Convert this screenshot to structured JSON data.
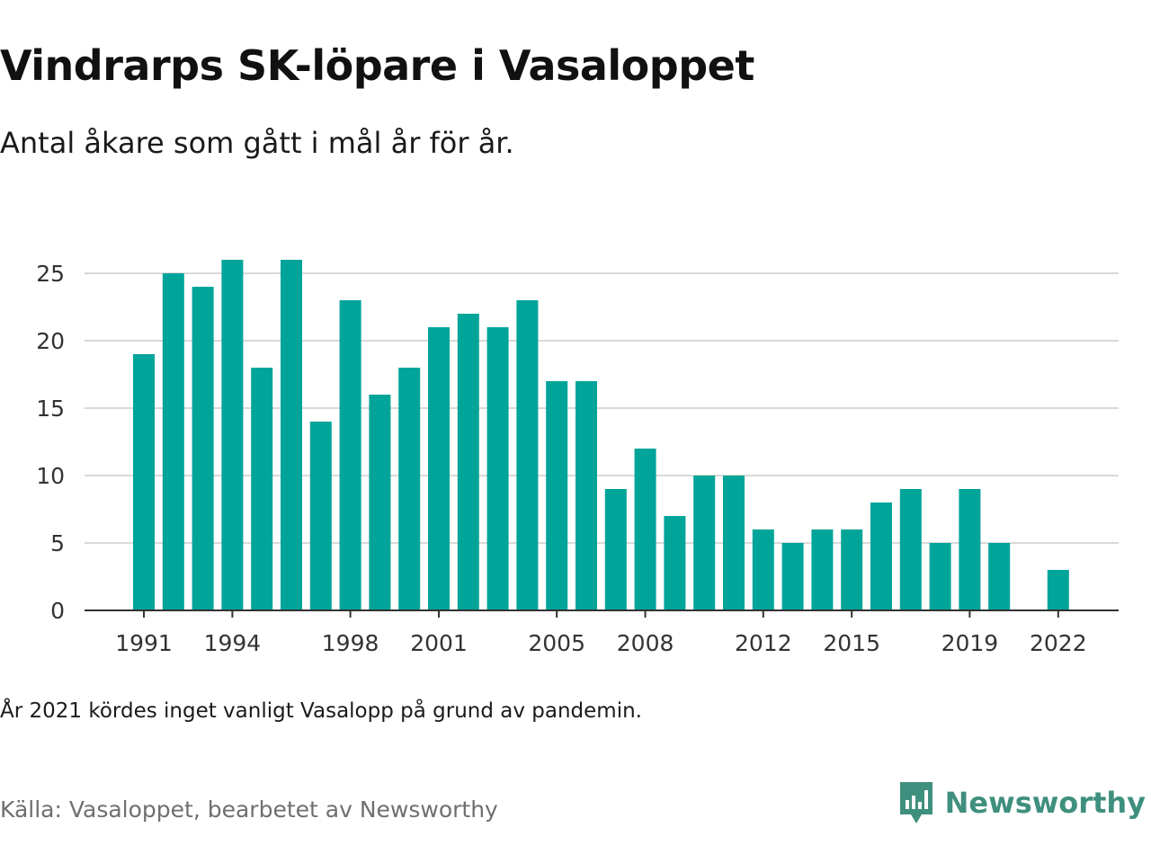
{
  "title": "Vindrarps SK-löpare i Vasaloppet",
  "subtitle": "Antal åkare som gått i mål år för år.",
  "note": "År 2021 kördes inget vanligt Vasalopp på grund av pandemin.",
  "source": "Källa: Vasaloppet, bearbetet av Newsworthy",
  "brand": {
    "name": "Newsworthy",
    "icon": "newsworthy-logo-icon",
    "color": "#3f8f7e"
  },
  "colors": {
    "bar": "#00a499",
    "grid": "#d9d9d9",
    "axis": "#333333",
    "tick_text": "#333333"
  },
  "chart_data": {
    "type": "bar",
    "x": [
      1991,
      1992,
      1993,
      1994,
      1995,
      1996,
      1997,
      1998,
      1999,
      2000,
      2001,
      2002,
      2003,
      2004,
      2005,
      2006,
      2007,
      2008,
      2009,
      2010,
      2011,
      2012,
      2013,
      2014,
      2015,
      2016,
      2017,
      2018,
      2019,
      2020,
      2021,
      2022
    ],
    "values": [
      19,
      25,
      24,
      26,
      18,
      26,
      14,
      23,
      16,
      18,
      21,
      22,
      21,
      23,
      17,
      17,
      9,
      12,
      7,
      10,
      10,
      6,
      5,
      6,
      6,
      8,
      9,
      5,
      9,
      5,
      null,
      3
    ],
    "x_tick_labels": [
      "1991",
      "1994",
      "1998",
      "2001",
      "2005",
      "2008",
      "2012",
      "2015",
      "2019",
      "2022"
    ],
    "y_ticks": [
      0,
      5,
      10,
      15,
      20,
      25
    ],
    "ylim": [
      0,
      26
    ],
    "xlabel": "",
    "ylabel": "",
    "grid": true
  }
}
